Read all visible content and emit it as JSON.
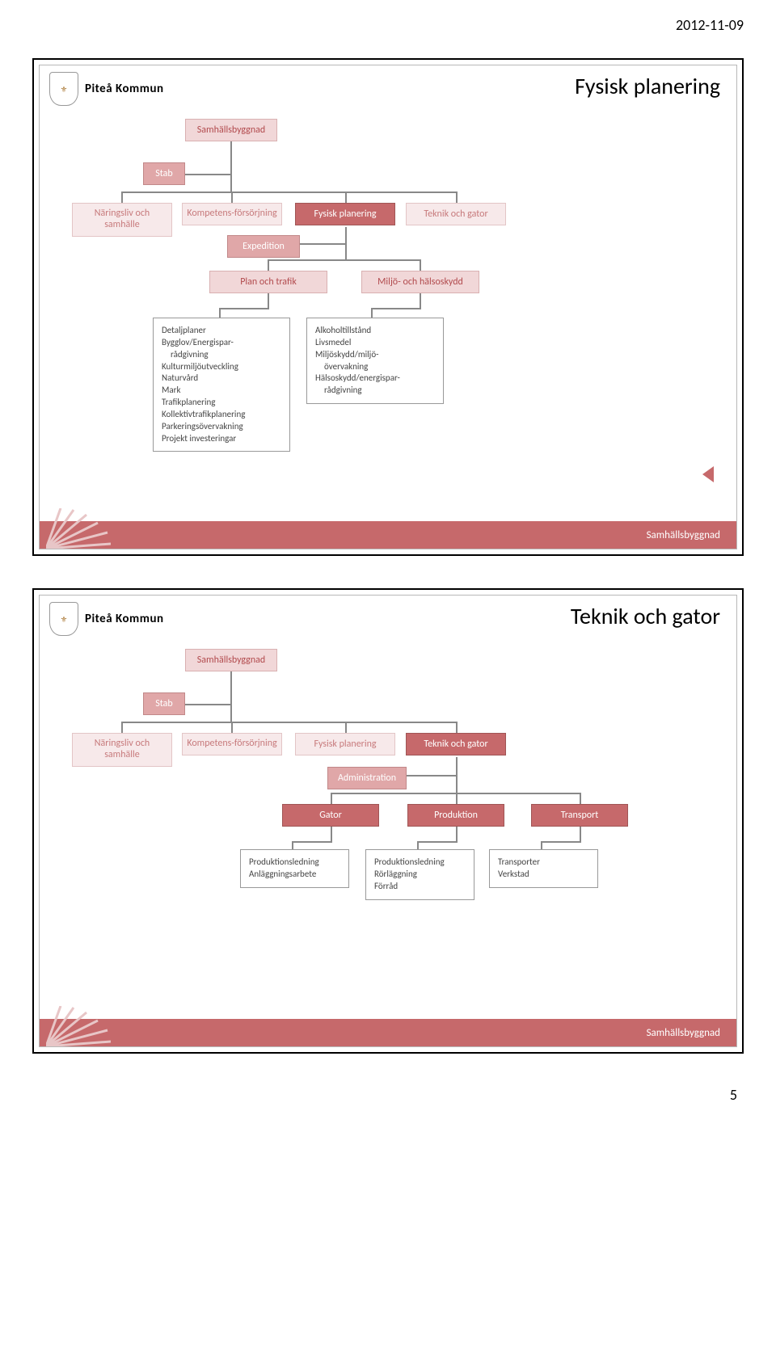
{
  "date": "2012-11-09",
  "pageNumber": "5",
  "cityName": "Piteå Kommun",
  "footerText": "Samhällsbyggnad",
  "colors": {
    "dark": "#c6696b",
    "mid": "#e0a7a8",
    "light": "#f1d7d8",
    "pale": "#f7e9ea",
    "border": "#888888",
    "background": "#ffffff",
    "text": "#444444"
  },
  "slide1": {
    "title": "Fysisk planering",
    "root": "Samhällsbyggnad",
    "stab": "Stab",
    "row1": [
      "Näringsliv och samhälle",
      "Kompetens-försörjning",
      "Fysisk planering",
      "Teknik och gator"
    ],
    "expedition": "Expedition",
    "sub": [
      "Plan och trafik",
      "Miljö- och hälsoskydd"
    ],
    "details1": [
      "Detaljplaner",
      "Bygglov/Energispar-",
      "   rådgivning",
      "Kulturmiljöutveckling",
      "Naturvård",
      "Mark",
      "Trafikplanering",
      "Kollektivtrafikplanering",
      "Parkeringsövervakning",
      "Projekt investeringar"
    ],
    "details2": [
      "Alkoholtillstånd",
      "Livsmedel",
      "Miljöskydd/miljö-",
      "   övervakning",
      "Hälsoskydd/energispar-",
      "   rådgivning"
    ]
  },
  "slide2": {
    "title": "Teknik och gator",
    "root": "Samhällsbyggnad",
    "stab": "Stab",
    "row1": [
      "Näringsliv och samhälle",
      "Kompetens-försörjning",
      "Fysisk planering",
      "Teknik och gator"
    ],
    "admin": "Administration",
    "sub": [
      "Gator",
      "Produktion",
      "Transport"
    ],
    "details1": [
      "Produktionsledning",
      "Anläggningsarbete"
    ],
    "details2": [
      "Produktionsledning",
      "Rörläggning",
      "Förråd"
    ],
    "details3": [
      "Transporter",
      "Verkstad"
    ]
  }
}
